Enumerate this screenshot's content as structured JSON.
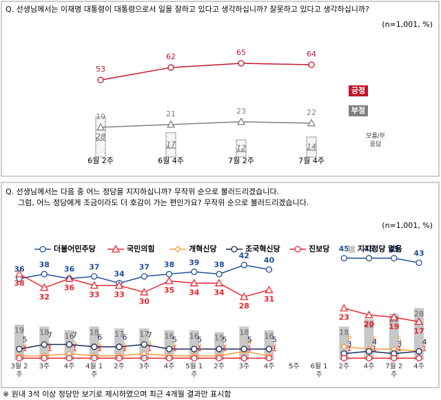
{
  "chart_data": [
    {
      "type": "line",
      "title": "Q. 선생님께서는 이재명 대통령이 대통령으로서 일을 잘하고 있다고 생각하십니까? 잘못하고 있다고 생각하십니까?",
      "note": "(n=1,001, %)",
      "categories": [
        "6월 2주",
        "6월 4주",
        "7월 2주",
        "7월 4주"
      ],
      "series": [
        {
          "name": "긍정",
          "color": "#c0142b",
          "marker": "circle",
          "values": [
            53,
            62,
            65,
            64
          ]
        },
        {
          "name": "부정",
          "color": "#7f7f7f",
          "marker": "triangle",
          "values": [
            19,
            21,
            23,
            22
          ]
        },
        {
          "name": "모름/무응답",
          "type": "bar",
          "color": "#eeeeee",
          "values": [
            28,
            17,
            12,
            14
          ]
        }
      ]
    },
    {
      "type": "line",
      "title": "Q. 선생님께서는 다음 중 어느 정당을 지지하십니까? 무작위 순으로 불러드리겠습니다.",
      "subtitle": "그럼, 어느 정당에게 조금이라도 더 호감이 가는 편인가요? 무작위 순으로 불러드리겠습니다.",
      "note": "(n=1,001, %)",
      "footnote": "※ 원내 3석 이상 정당만 보기로 제시하였으며 최근 4개월 결과만 표시함",
      "categories": [
        "3월 2주",
        "3주",
        "4주",
        "4월 1주",
        "2주",
        "3주",
        "4주",
        "5월 1주",
        "2주",
        "3주",
        "4주",
        "5주",
        "6월 1주",
        "2주",
        "4주",
        "7월 2주",
        "4주"
      ],
      "series": [
        {
          "name": "더불어민주당",
          "color": "#1f4e9c",
          "marker": "circle",
          "values": [
            36,
            38,
            36,
            37,
            34,
            37,
            38,
            39,
            38,
            42,
            40,
            null,
            null,
            45,
            45,
            45,
            43
          ]
        },
        {
          "name": "국민의힘",
          "color": "#e8262d",
          "marker": "triangle",
          "values": [
            38,
            32,
            36,
            33,
            33,
            30,
            35,
            34,
            34,
            28,
            31,
            null,
            null,
            23,
            20,
            19,
            17
          ]
        },
        {
          "name": "개혁신당",
          "color": "#f39a3c",
          "marker": "diamond",
          "values": [
            2,
            2,
            3,
            2,
            2,
            3,
            2,
            2,
            2,
            4,
            2,
            null,
            null,
            6,
            5,
            5,
            4
          ]
        },
        {
          "name": "조국혁신당",
          "color": "#1a2a5a",
          "marker": "circle",
          "values": [
            5,
            7,
            7,
            6,
            6,
            7,
            5,
            5,
            5,
            5,
            5,
            null,
            null,
            3,
            4,
            3,
            4
          ]
        },
        {
          "name": "진보당",
          "color": "#e8262d",
          "marker": "circle",
          "values": [
            1,
            1,
            1,
            1,
            1,
            1,
            1,
            1,
            1,
            1,
            1,
            null,
            null,
            1,
            1,
            1,
            1
          ]
        },
        {
          "name": "지지정당 없음",
          "type": "bar",
          "color": "#c8c8c8",
          "values": [
            19,
            18,
            16,
            18,
            17,
            17,
            16,
            16,
            15,
            18,
            16,
            null,
            null,
            18,
            22,
            25,
            28
          ]
        }
      ]
    }
  ]
}
